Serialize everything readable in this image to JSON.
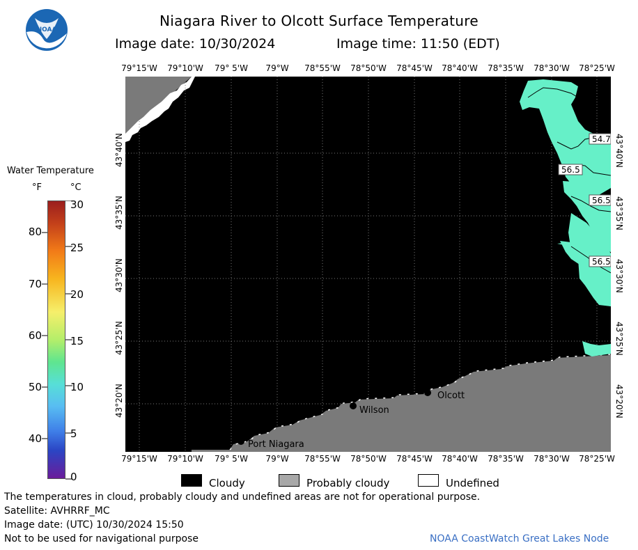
{
  "header": {
    "logo_text": "NOAA",
    "title": "Niagara River to Olcott Surface Temperature",
    "image_date": "Image date: 10/30/2024",
    "image_time": "Image time: 11:50 (EDT)"
  },
  "map": {
    "lon_labels": [
      "79°15'W",
      "79°10'W",
      "79° 5'W",
      "79°W",
      "78°55'W",
      "78°50'W",
      "78°45'W",
      "78°40'W",
      "78°35'W",
      "78°30'W",
      "78°25'W"
    ],
    "lat_labels": [
      "43°40'N",
      "43°35'N",
      "43°30'N",
      "43°25'N",
      "43°20'N"
    ],
    "places": [
      "Olcott",
      "Wilson",
      "Port Niagara"
    ],
    "isotherms": [
      "54.7",
      "56.5",
      "56.5",
      "56.5"
    ],
    "colors": {
      "cloudy": "#000000",
      "probably_cloudy": "#7a7a7a",
      "undefined": "#ffffff",
      "water_warm": "#66f0b5",
      "water_cool": "#66f0d6"
    }
  },
  "legend": {
    "title": "Water Temperature",
    "unit_f": "°F",
    "unit_c": "°C",
    "f_ticks": [
      "80",
      "70",
      "60",
      "50",
      "40"
    ],
    "c_ticks": [
      "30",
      "25",
      "20",
      "15",
      "10",
      "5",
      "0"
    ],
    "range_c": [
      0,
      30
    ],
    "categories": {
      "cloudy": "Cloudy",
      "probably_cloudy": "Probably cloudy",
      "undefined": "Undefined"
    }
  },
  "footer": {
    "disclaimer": "The temperatures in cloud, probably cloudy and undefined areas are not for operational purpose.",
    "satellite": "Satellite: AVHRRF_MC",
    "utc_date": "Image date: (UTC) 10/30/2024  15:50",
    "nav_warning": "Not to be used for navigational purpose",
    "credit": "NOAA CoastWatch Great Lakes Node"
  }
}
